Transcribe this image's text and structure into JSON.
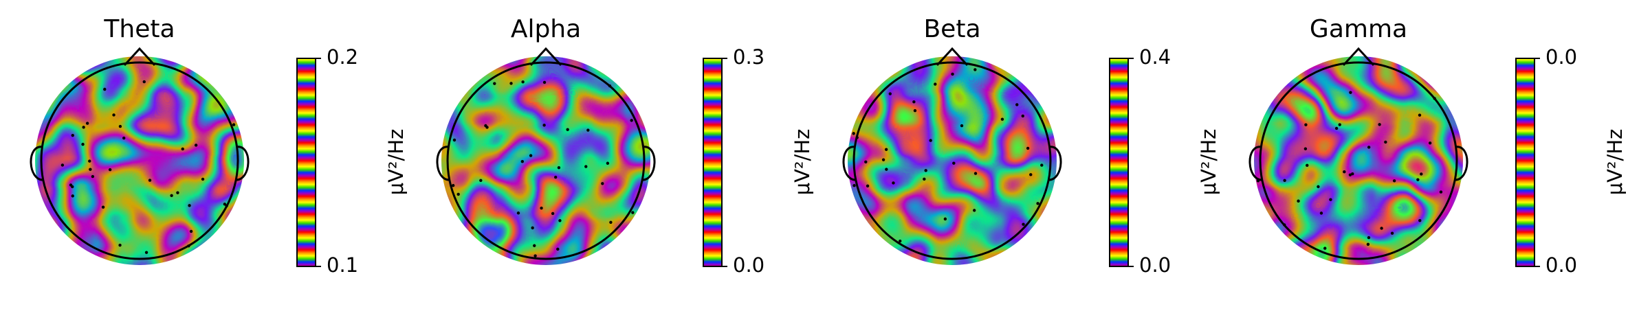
{
  "chart_data": [
    {
      "type": "topomap",
      "title": "Theta",
      "colorbar_label": "μV²/Hz",
      "clim": [
        0.1,
        0.2
      ],
      "cticks": [
        0.1,
        0.2
      ]
    },
    {
      "type": "topomap",
      "title": "Alpha",
      "colorbar_label": "μV²/Hz",
      "clim": [
        0,
        0.3
      ],
      "cticks": [
        {
          "value": 0,
          "label": "0.0"
        },
        0.3
      ]
    },
    {
      "type": "topomap",
      "title": "Beta",
      "colorbar_label": "μV²/Hz",
      "clim": [
        0,
        0.4
      ],
      "cticks": [
        {
          "value": 0,
          "label": "0.0"
        },
        0.4
      ]
    },
    {
      "type": "topomap",
      "title": "Gamma",
      "colorbar_label": "μV²/Hz",
      "clim": [
        0,
        3e-05
      ],
      "cticks": [
        {
          "value": 0,
          "label": "0.0"
        },
        {
          "value": 3e-05,
          "label": "0.0"
        }
      ]
    }
  ]
}
